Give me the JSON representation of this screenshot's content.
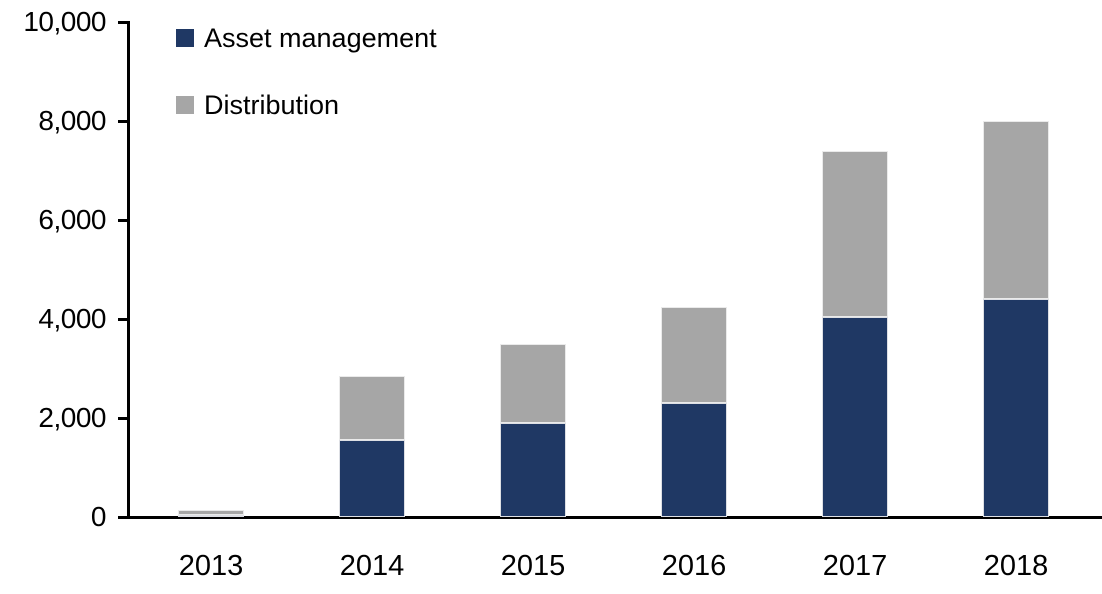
{
  "chart_data": {
    "type": "bar",
    "stacked": true,
    "title": "",
    "xlabel": "",
    "ylabel": "",
    "categories": [
      "2013",
      "2014",
      "2015",
      "2016",
      "2017",
      "2018"
    ],
    "series": [
      {
        "name": "Asset management",
        "color": "#1F3864",
        "values": [
          50,
          1550,
          1900,
          2300,
          4050,
          4400
        ]
      },
      {
        "name": "Distribution",
        "color": "#A6A6A6",
        "values": [
          100,
          1300,
          1600,
          1950,
          3350,
          3600
        ]
      }
    ],
    "totals": [
      150,
      2850,
      3500,
      4250,
      7400,
      8000
    ],
    "ylim": [
      0,
      10000
    ],
    "ytick_step": 2000,
    "ytick_labels": [
      "0",
      "2,000",
      "4,000",
      "6,000",
      "8,000",
      "10,000"
    ],
    "grid": false,
    "legend_position": "top-left",
    "axis_color": "#000000",
    "background_color": "#FFFFFF"
  }
}
